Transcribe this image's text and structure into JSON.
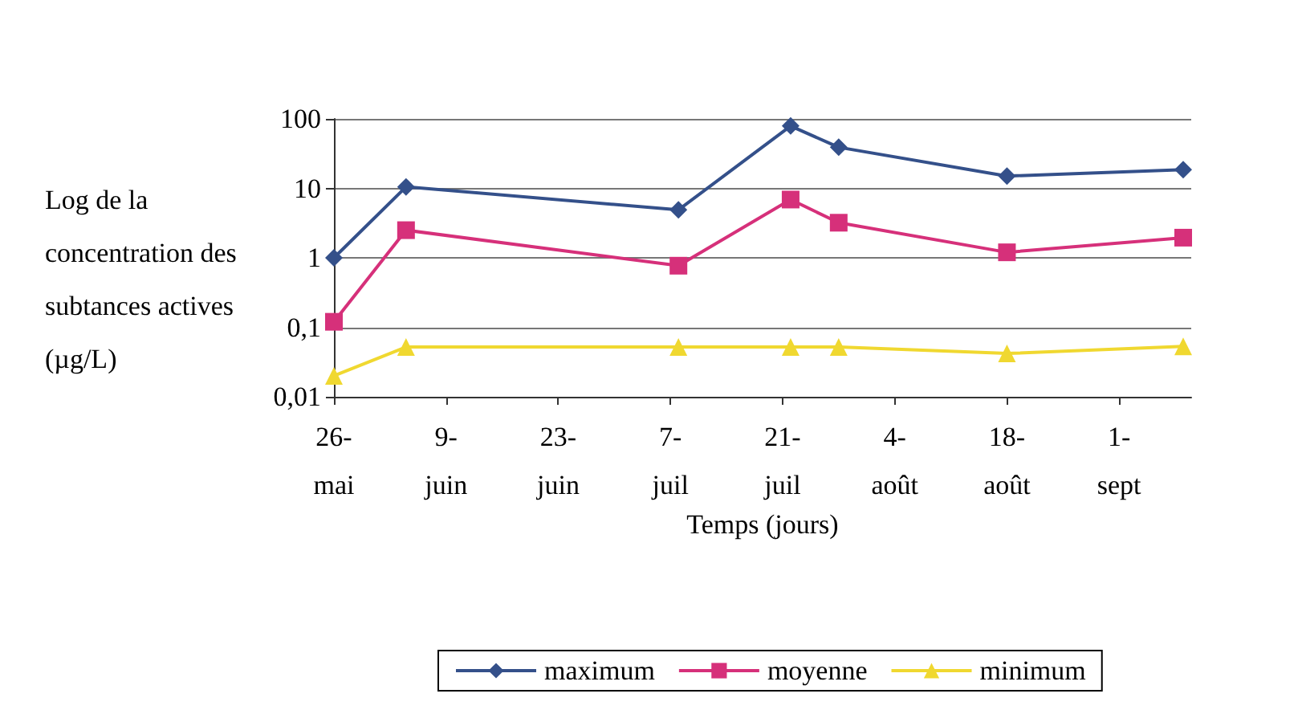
{
  "chart_data": {
    "type": "line",
    "ylabel": "Log de la concentration des subtances actives (µg/L)",
    "xlabel": "Temps (jours)",
    "x": [
      "--05-26",
      "--06-04",
      "--07-08",
      "--07-22",
      "--07-28",
      "--08-18",
      "--09-09"
    ],
    "series": [
      {
        "name": "maximum",
        "color": "#34508a",
        "marker": "diamond",
        "values": [
          1.0,
          10.5,
          4.9,
          79,
          39,
          15,
          18.6
        ]
      },
      {
        "name": "moyenne",
        "color": "#d6307a",
        "marker": "square",
        "values": [
          0.12,
          2.5,
          0.77,
          6.9,
          3.2,
          1.2,
          1.95
        ]
      },
      {
        "name": "minimum",
        "color": "#f0d830",
        "marker": "triangle",
        "values": [
          0.02,
          0.052,
          0.052,
          0.052,
          0.052,
          0.042,
          0.053
        ]
      }
    ],
    "log": "y",
    "ylim": [
      0.01,
      100
    ],
    "yticks": [
      {
        "value": 0.01,
        "label": "0,01"
      },
      {
        "value": 0.1,
        "label": "0,1"
      },
      1,
      10,
      100
    ],
    "xlim": [
      "--05-26",
      "--09-10"
    ],
    "xticks": [
      {
        "value": "--05-26",
        "label": "26-\nmai"
      },
      {
        "value": "--06-09",
        "label": "9-\njuin"
      },
      {
        "value": "--06-23",
        "label": "23-\njuin"
      },
      {
        "value": "--07-07",
        "label": "7-\njuil"
      },
      {
        "value": "--07-21",
        "label": "21-\njuil"
      },
      {
        "value": "--08-04",
        "label": "4-\naoût"
      },
      {
        "value": "--08-18",
        "label": "18-\naoût"
      },
      {
        "value": "--09-01",
        "label": "1-\nsept"
      }
    ],
    "grid": "y",
    "legend": "bottom",
    "line_style": "solid"
  }
}
